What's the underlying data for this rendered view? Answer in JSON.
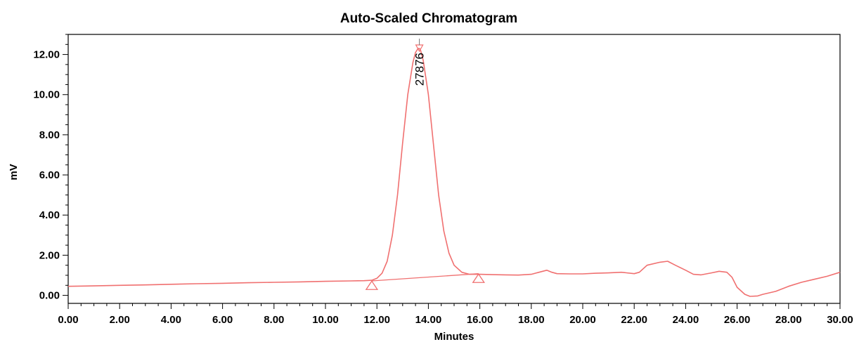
{
  "chart_data": {
    "type": "line",
    "title": "Auto-Scaled Chromatogram",
    "xlabel": "Minutes",
    "ylabel": "mV",
    "xlim": [
      0,
      30
    ],
    "ylim": [
      -0.4,
      13
    ],
    "x_ticks": [
      "0.00",
      "2.00",
      "4.00",
      "6.00",
      "8.00",
      "10.00",
      "12.00",
      "14.00",
      "16.00",
      "18.00",
      "20.00",
      "22.00",
      "24.00",
      "26.00",
      "28.00",
      "30.00"
    ],
    "y_ticks": [
      "0.00",
      "2.00",
      "4.00",
      "6.00",
      "8.00",
      "10.00",
      "12.00"
    ],
    "grid": false,
    "line_color": "#f07070",
    "series": [
      {
        "x": [
          0,
          1,
          2,
          3,
          4,
          5,
          6,
          7,
          8,
          9,
          10,
          11,
          11.5,
          11.8,
          12.0,
          12.2,
          12.4,
          12.6,
          12.8,
          13.0,
          13.2,
          13.4,
          13.5,
          13.6,
          13.65,
          13.7,
          13.8,
          14.0,
          14.2,
          14.4,
          14.6,
          14.8,
          15.0,
          15.3,
          15.6,
          16.0,
          16.5,
          17.0,
          17.5,
          18.0,
          18.3,
          18.6,
          18.8,
          19.0,
          19.5,
          20.0,
          20.5,
          21.0,
          21.5,
          22.0,
          22.2,
          22.5,
          23.0,
          23.3,
          23.6,
          24.0,
          24.3,
          24.6,
          25.0,
          25.3,
          25.6,
          25.8,
          26.0,
          26.3,
          26.5,
          26.8,
          27.0,
          27.5,
          28.0,
          28.5,
          29.0,
          29.5,
          30.0
        ],
        "y": [
          0.45,
          0.47,
          0.5,
          0.52,
          0.55,
          0.58,
          0.6,
          0.63,
          0.65,
          0.67,
          0.7,
          0.72,
          0.73,
          0.75,
          0.85,
          1.1,
          1.7,
          3.0,
          5.0,
          7.6,
          10.0,
          11.6,
          12.1,
          12.3,
          12.3,
          12.2,
          11.7,
          10.0,
          7.5,
          5.0,
          3.2,
          2.1,
          1.5,
          1.15,
          1.05,
          1.05,
          1.03,
          1.02,
          1.01,
          1.05,
          1.15,
          1.25,
          1.15,
          1.08,
          1.07,
          1.07,
          1.1,
          1.12,
          1.15,
          1.08,
          1.15,
          1.5,
          1.65,
          1.7,
          1.5,
          1.25,
          1.05,
          1.02,
          1.12,
          1.2,
          1.15,
          0.9,
          0.4,
          0.05,
          -0.05,
          -0.03,
          0.05,
          0.2,
          0.45,
          0.65,
          0.8,
          0.95,
          1.15
        ]
      }
    ],
    "baselines": [
      {
        "x": [
          11.8,
          15.95
        ],
        "y": [
          0.72,
          1.08
        ]
      }
    ],
    "markers": [
      {
        "type": "triangle-up",
        "x": 11.8,
        "y": 0.5
      },
      {
        "type": "triangle-up",
        "x": 15.95,
        "y": 0.85
      },
      {
        "type": "triangle-down",
        "x": 13.65,
        "y": 12.3
      }
    ],
    "annotations": [
      {
        "text": "27876",
        "x": 13.65,
        "y": 12.3,
        "rotation": -90
      }
    ]
  }
}
